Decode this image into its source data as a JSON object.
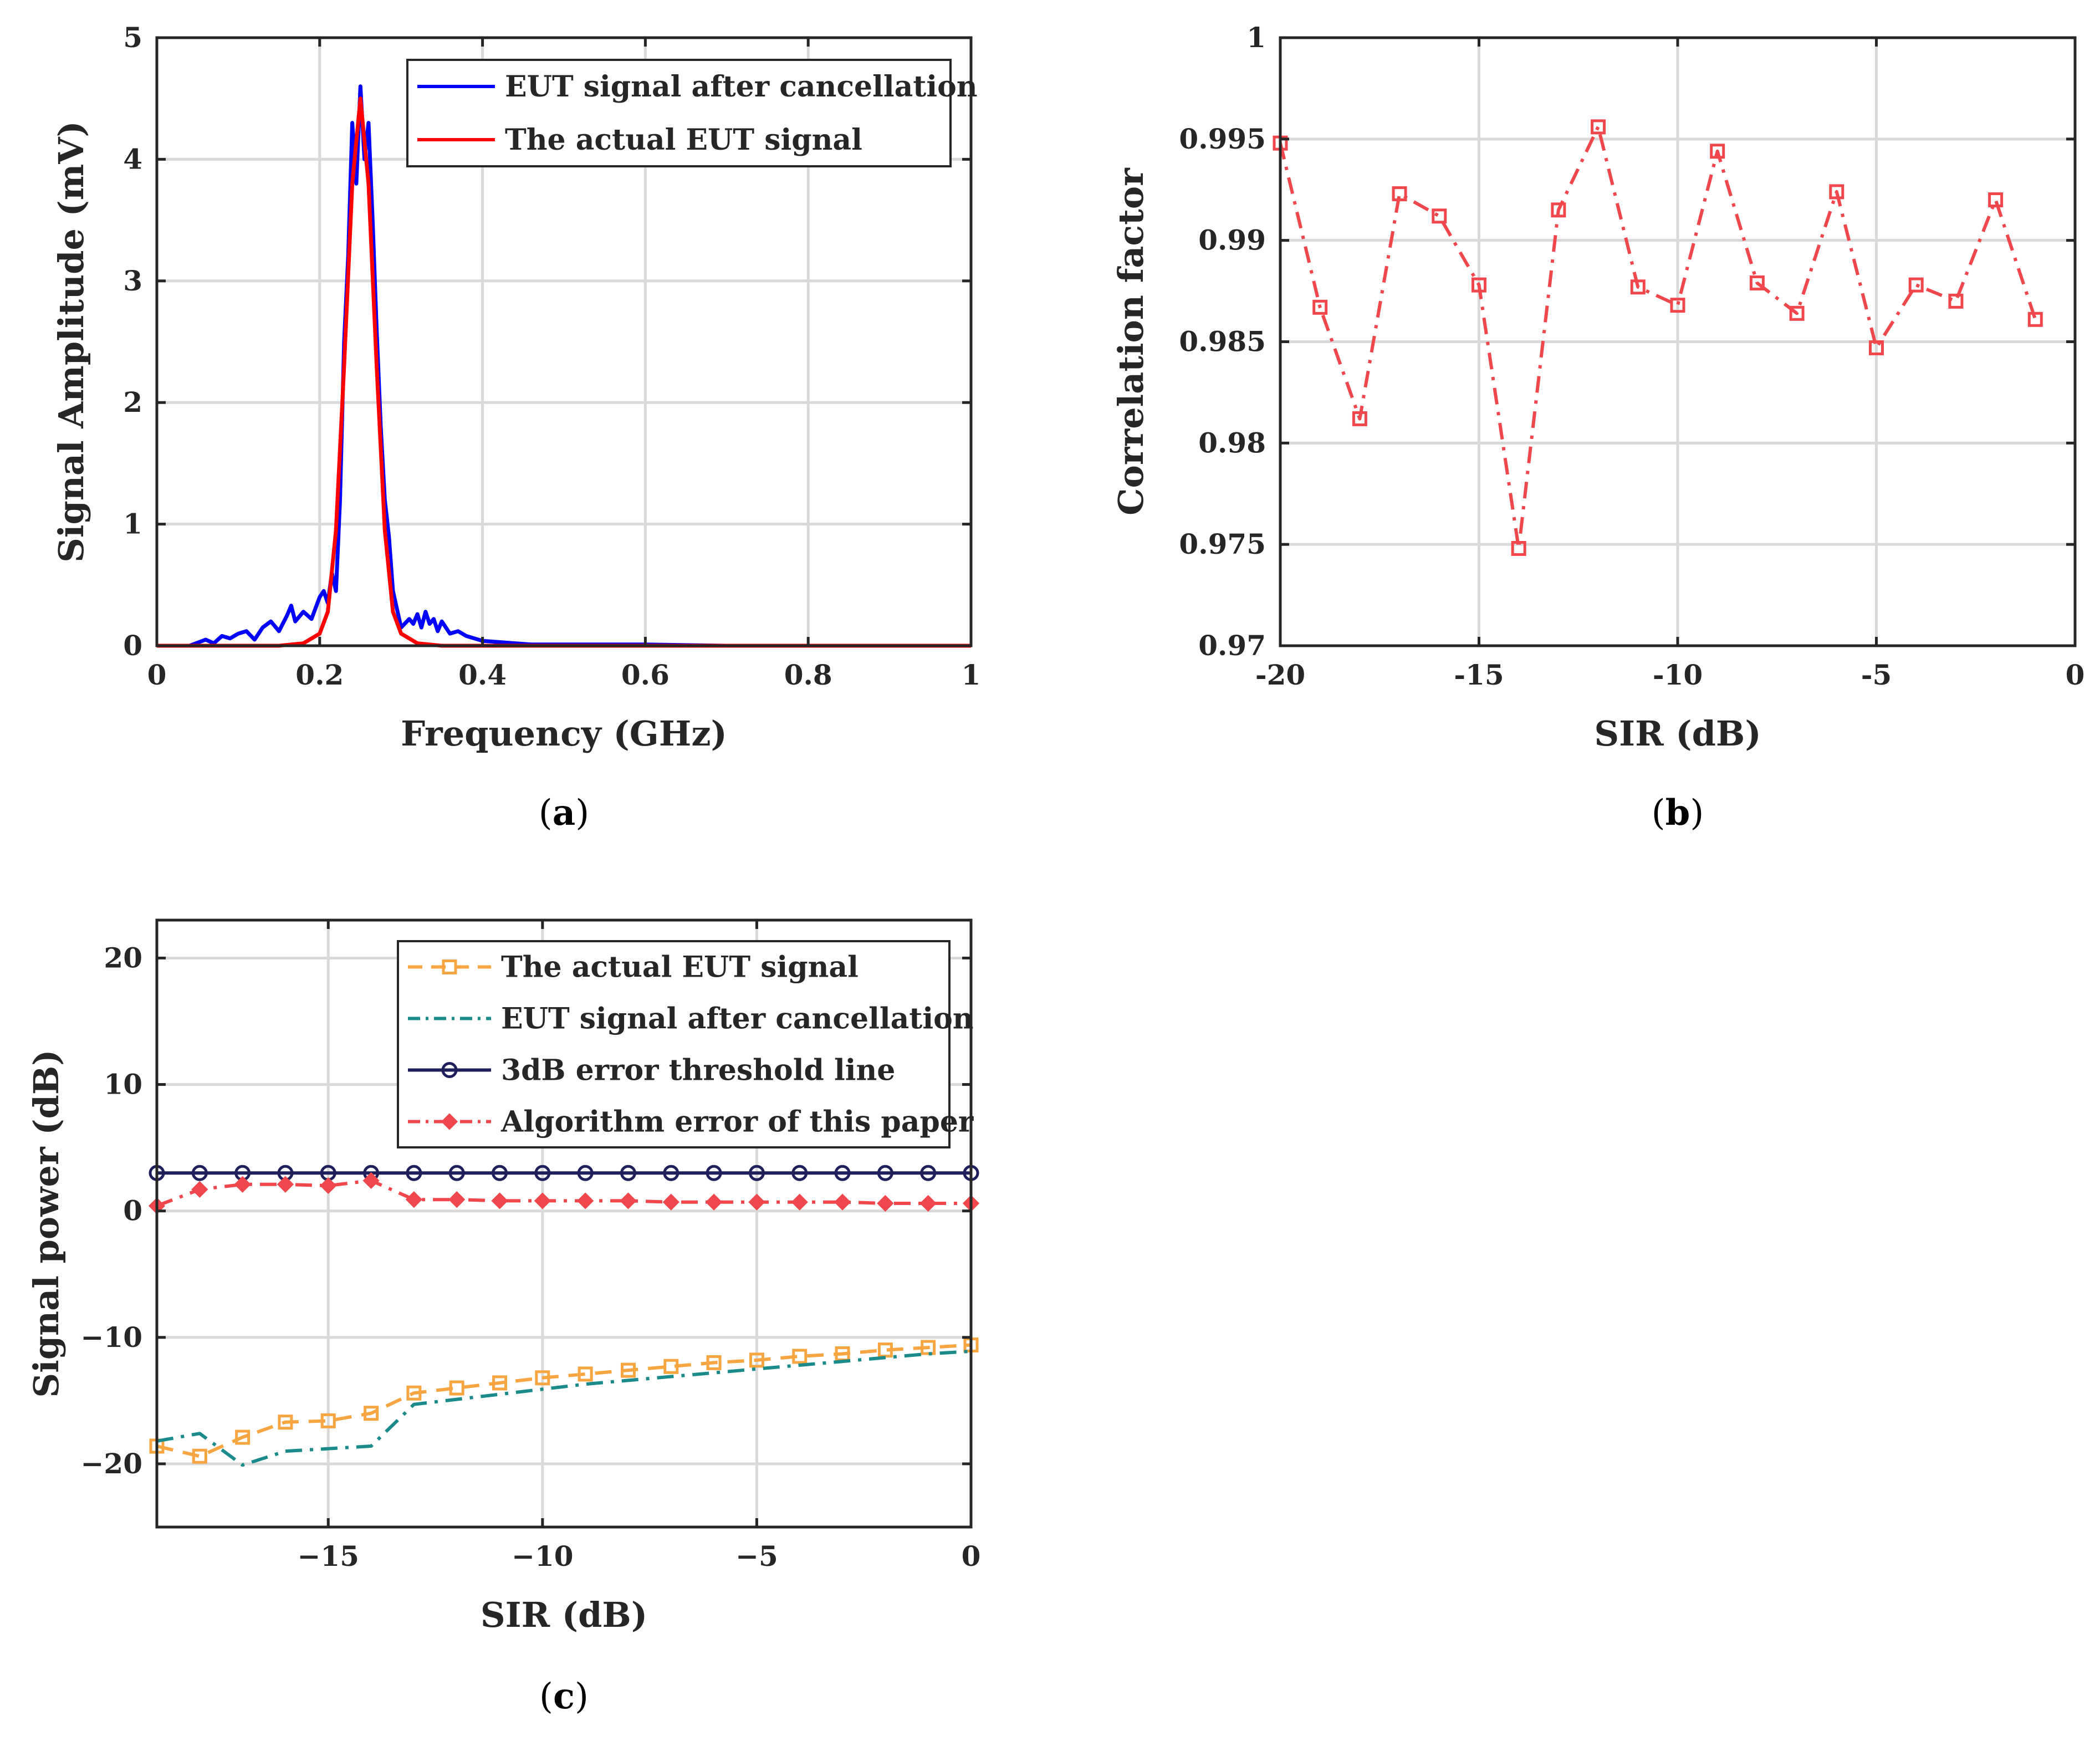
{
  "chart_data": [
    {
      "id": "a",
      "type": "line",
      "caption": "a",
      "xlabel": "Frequency (GHz)",
      "ylabel": "Signal Amplitude (mV)",
      "xlim": [
        0,
        1
      ],
      "ylim": [
        0,
        5
      ],
      "xticks": [
        0,
        0.2,
        0.4,
        0.6,
        0.8,
        1
      ],
      "xtick_labels": [
        "0",
        "0.2",
        "0.4",
        "0.6",
        "0.8",
        "1"
      ],
      "yticks": [
        0,
        1,
        2,
        3,
        4,
        5
      ],
      "ytick_labels": [
        "0",
        "1",
        "2",
        "3",
        "4",
        "5"
      ],
      "grid": true,
      "legend_position": "top-right",
      "series": [
        {
          "name": "EUT signal after cancellation",
          "color": "#0000ff",
          "style": "solid",
          "x": [
            0,
            0.04,
            0.06,
            0.07,
            0.08,
            0.09,
            0.1,
            0.11,
            0.12,
            0.13,
            0.14,
            0.15,
            0.16,
            0.165,
            0.17,
            0.18,
            0.19,
            0.2,
            0.205,
            0.21,
            0.215,
            0.22,
            0.225,
            0.23,
            0.235,
            0.24,
            0.245,
            0.25,
            0.255,
            0.26,
            0.265,
            0.27,
            0.275,
            0.28,
            0.285,
            0.29,
            0.3,
            0.31,
            0.315,
            0.32,
            0.325,
            0.33,
            0.335,
            0.34,
            0.345,
            0.35,
            0.36,
            0.37,
            0.38,
            0.39,
            0.4,
            0.42,
            0.44,
            0.46,
            0.5,
            0.6,
            0.7,
            1
          ],
          "values": [
            0,
            0,
            0.05,
            0.02,
            0.08,
            0.06,
            0.1,
            0.12,
            0.05,
            0.15,
            0.2,
            0.12,
            0.25,
            0.33,
            0.2,
            0.28,
            0.22,
            0.4,
            0.45,
            0.35,
            0.6,
            0.45,
            1.2,
            2.5,
            3.2,
            4.3,
            3.8,
            4.6,
            4.0,
            4.3,
            3.5,
            2.6,
            1.8,
            1.2,
            0.9,
            0.45,
            0.15,
            0.22,
            0.18,
            0.26,
            0.15,
            0.28,
            0.18,
            0.22,
            0.12,
            0.2,
            0.1,
            0.12,
            0.08,
            0.06,
            0.04,
            0.03,
            0.02,
            0.01,
            0.01,
            0.01,
            0,
            0
          ]
        },
        {
          "name": "The actual EUT signal",
          "color": "#ff0000",
          "style": "solid",
          "x": [
            0,
            0.15,
            0.18,
            0.2,
            0.21,
            0.22,
            0.23,
            0.24,
            0.25,
            0.26,
            0.27,
            0.28,
            0.29,
            0.3,
            0.32,
            0.35,
            1
          ],
          "values": [
            0,
            0,
            0.02,
            0.1,
            0.28,
            0.95,
            2.3,
            3.8,
            4.5,
            3.8,
            2.3,
            0.95,
            0.28,
            0.1,
            0.02,
            0,
            0
          ]
        }
      ]
    },
    {
      "id": "b",
      "type": "line",
      "caption": "b",
      "xlabel": "SIR (dB)",
      "ylabel": "Correlation factor",
      "xlim": [
        -20,
        0
      ],
      "ylim": [
        0.97,
        1
      ],
      "xticks": [
        -20,
        -15,
        -10,
        -5,
        0
      ],
      "xtick_labels": [
        "-20",
        "-15",
        "-10",
        "-5",
        "0"
      ],
      "yticks": [
        0.97,
        0.975,
        0.98,
        0.985,
        0.99,
        0.995,
        1
      ],
      "ytick_labels": [
        "0.97",
        "0.975",
        "0.98",
        "0.985",
        "0.99",
        "0.995",
        "1"
      ],
      "grid": true,
      "series": [
        {
          "name": "Correlation factor",
          "color": "#f0474d",
          "style": "dashdot",
          "marker": "square",
          "x": [
            -20,
            -19,
            -18,
            -17,
            -16,
            -15,
            -14,
            -13,
            -12,
            -11,
            -10,
            -9,
            -8,
            -7,
            -6,
            -5,
            -4,
            -3,
            -2,
            -1
          ],
          "values": [
            0.9948,
            0.9867,
            0.9812,
            0.9923,
            0.9912,
            0.9878,
            0.9748,
            0.9915,
            0.9956,
            0.9877,
            0.9868,
            0.9944,
            0.9879,
            0.9864,
            0.9924,
            0.9847,
            0.9878,
            0.987,
            0.992,
            0.9861
          ]
        }
      ]
    },
    {
      "id": "c",
      "type": "line",
      "caption": "c",
      "xlabel": "SIR (dB)",
      "ylabel": "Signal power (dB)",
      "xlim": [
        -19,
        0
      ],
      "ylim": [
        -25,
        23
      ],
      "xticks": [
        -15,
        -10,
        -5,
        0
      ],
      "xtick_labels": [
        "−15",
        "−10",
        "−5",
        "0"
      ],
      "yticks": [
        -20,
        -10,
        0,
        10,
        20
      ],
      "ytick_labels": [
        "−20",
        "−10",
        "0",
        "10",
        "20"
      ],
      "grid": true,
      "legend_position": "top-right",
      "series": [
        {
          "name": "The actual EUT signal",
          "color": "#f7a541",
          "style": "dashed",
          "marker": "square",
          "x": [
            -19,
            -18,
            -17,
            -16,
            -15,
            -14,
            -13,
            -12,
            -11,
            -10,
            -9,
            -8,
            -7,
            -6,
            -5,
            -4,
            -3,
            -2,
            -1,
            0
          ],
          "values": [
            -18.6,
            -19.4,
            -17.9,
            -16.7,
            -16.6,
            -16.0,
            -14.4,
            -14.0,
            -13.6,
            -13.2,
            -12.9,
            -12.6,
            -12.3,
            -12.0,
            -11.8,
            -11.5,
            -11.3,
            -11.0,
            -10.8,
            -10.6
          ]
        },
        {
          "name": "EUT signal after cancellation",
          "color": "#1a8a8a",
          "style": "dashdot",
          "marker": "none",
          "x": [
            -19,
            -18,
            -17,
            -16,
            -15,
            -14,
            -13,
            -12,
            -11,
            -10,
            -9,
            -8,
            -7,
            -6,
            -5,
            -4,
            -3,
            -2,
            -1,
            0
          ],
          "values": [
            -18.2,
            -17.6,
            -20.1,
            -19.0,
            -18.8,
            -18.6,
            -15.3,
            -14.9,
            -14.5,
            -14.1,
            -13.7,
            -13.4,
            -13.1,
            -12.8,
            -12.5,
            -12.2,
            -11.9,
            -11.6,
            -11.3,
            -11.1
          ]
        },
        {
          "name": "3dB error threshold line",
          "color": "#1f1f5c",
          "style": "solid",
          "marker": "circle",
          "x": [
            -19,
            -18,
            -17,
            -16,
            -15,
            -14,
            -13,
            -12,
            -11,
            -10,
            -9,
            -8,
            -7,
            -6,
            -5,
            -4,
            -3,
            -2,
            -1,
            0
          ],
          "values": [
            3,
            3,
            3,
            3,
            3,
            3,
            3,
            3,
            3,
            3,
            3,
            3,
            3,
            3,
            3,
            3,
            3,
            3,
            3,
            3
          ]
        },
        {
          "name": "Algorithm error of this paper",
          "color": "#f0474d",
          "style": "dashdot",
          "marker": "diamond",
          "x": [
            -19,
            -18,
            -17,
            -16,
            -15,
            -14,
            -13,
            -12,
            -11,
            -10,
            -9,
            -8,
            -7,
            -6,
            -5,
            -4,
            -3,
            -2,
            -1,
            0
          ],
          "values": [
            0.4,
            1.7,
            2.1,
            2.1,
            2.0,
            2.4,
            0.9,
            0.9,
            0.8,
            0.8,
            0.8,
            0.8,
            0.7,
            0.7,
            0.7,
            0.7,
            0.7,
            0.6,
            0.6,
            0.6
          ]
        }
      ]
    }
  ]
}
